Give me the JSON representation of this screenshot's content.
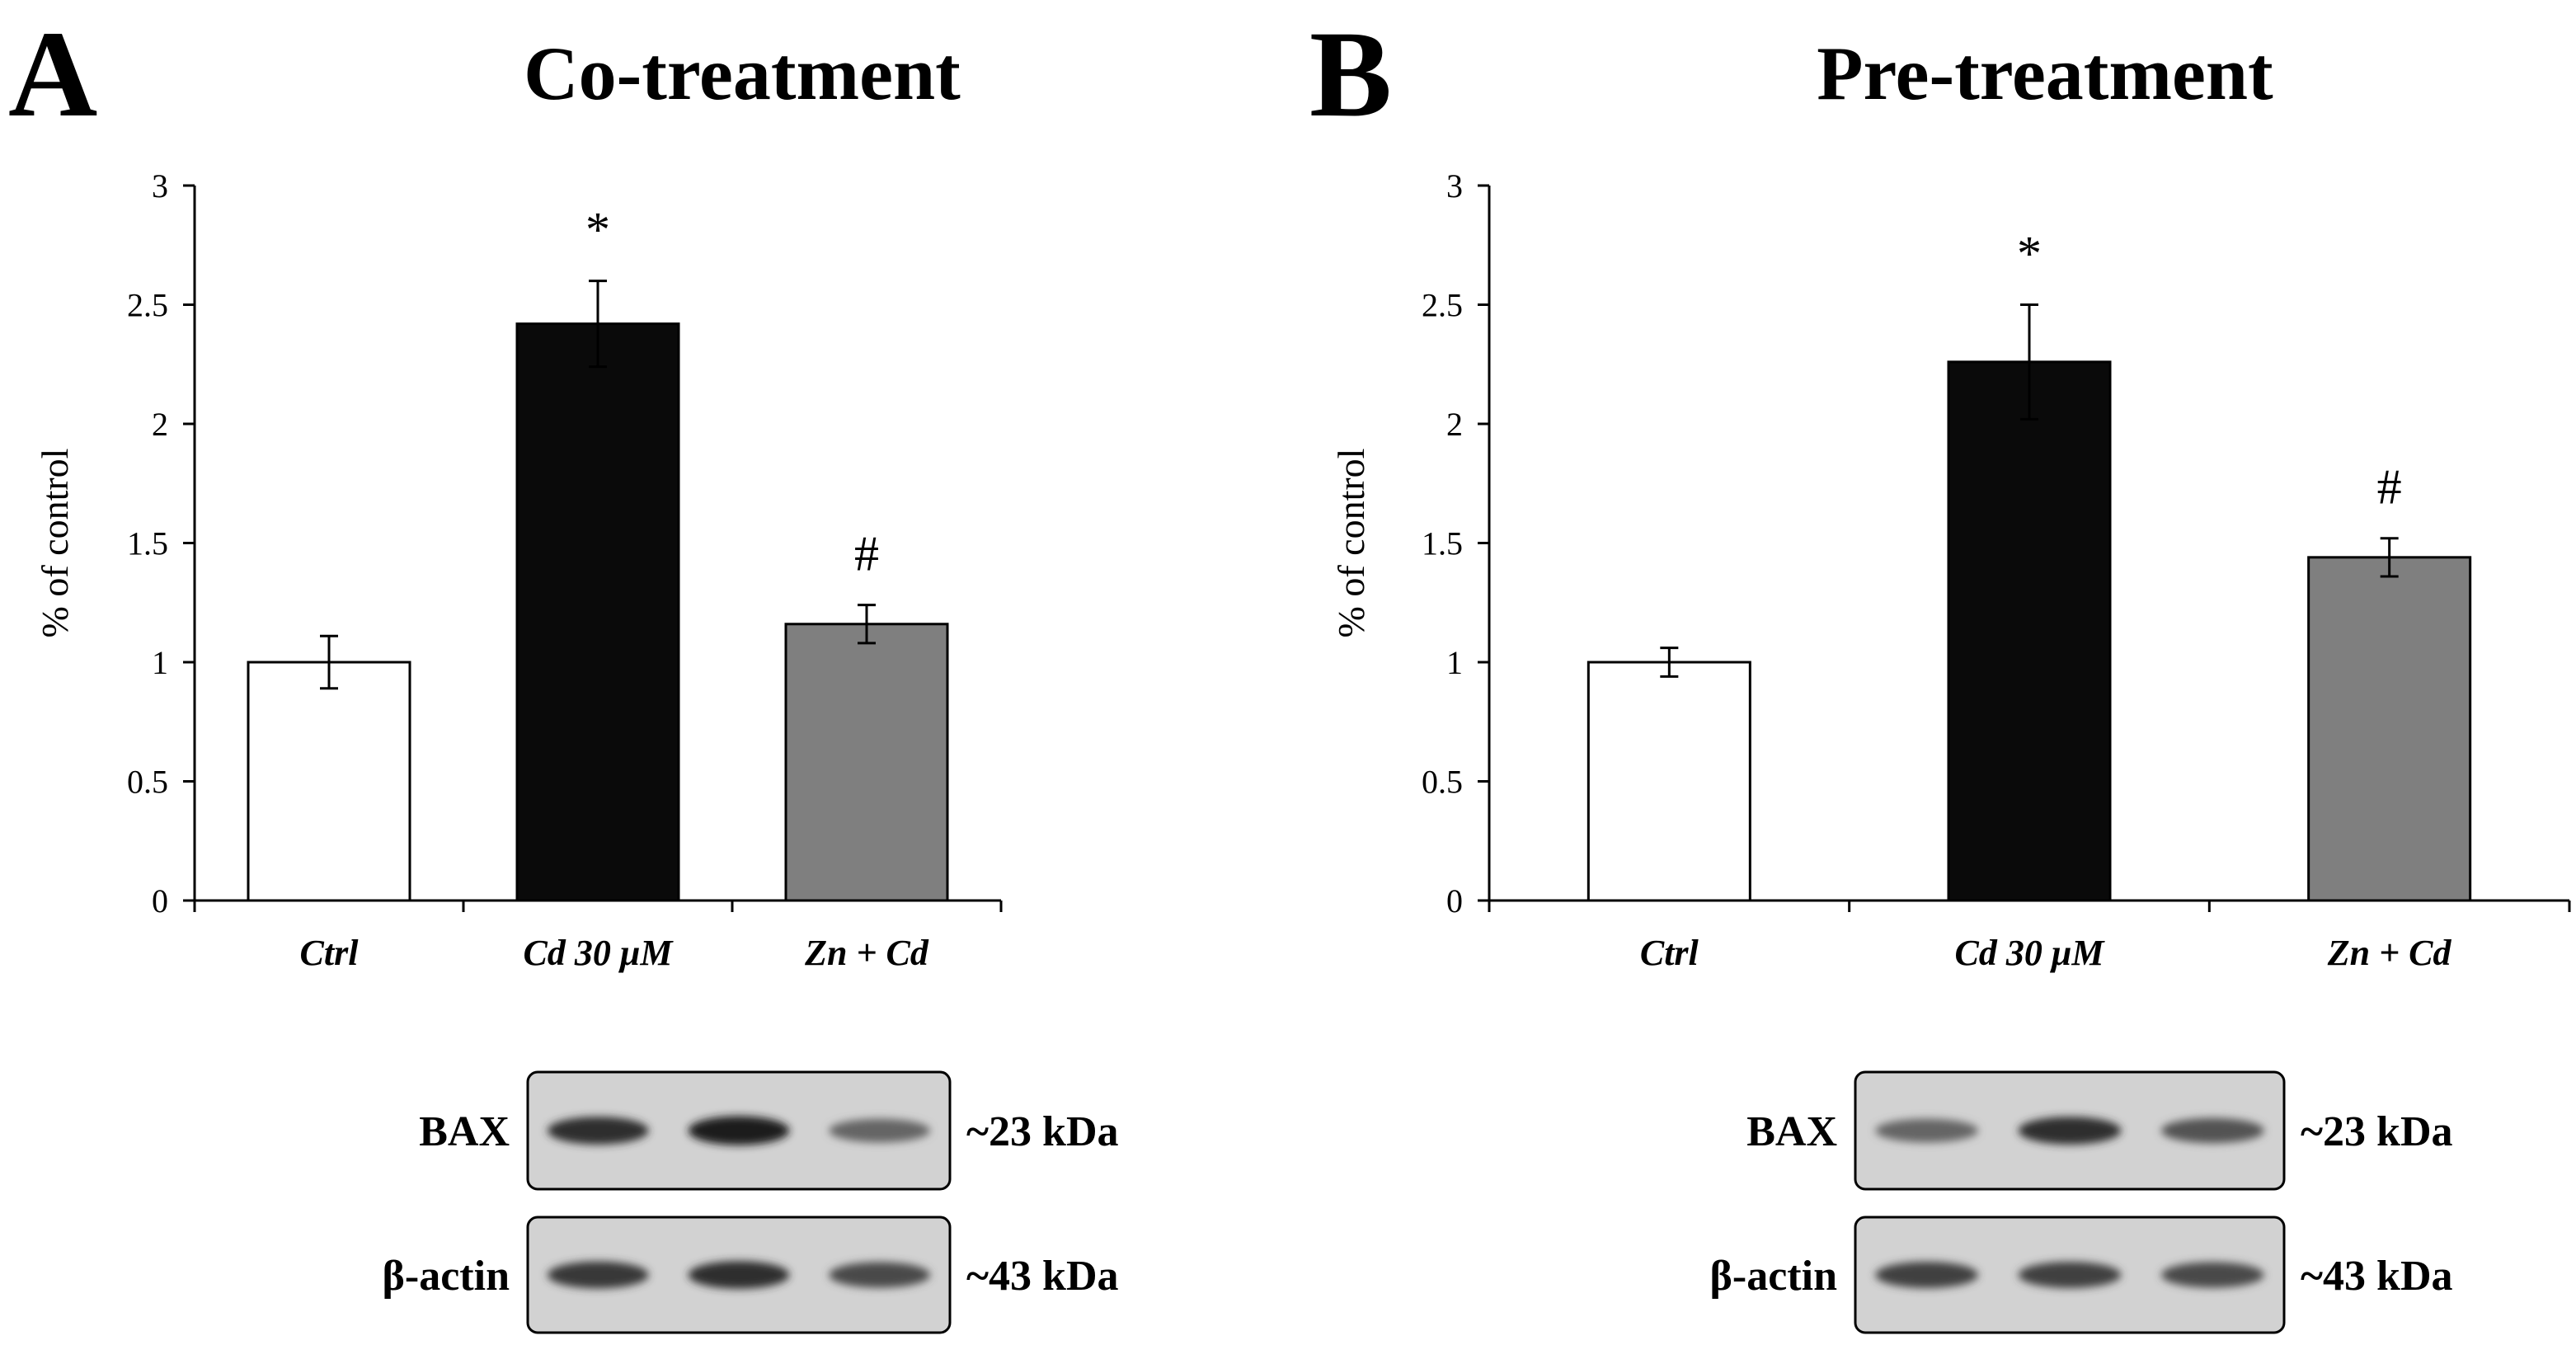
{
  "panels": [
    {
      "letter": "A",
      "title": "Co-treatment",
      "chart_data": {
        "type": "bar",
        "title": "Co-treatment",
        "ylabel": "% of control",
        "xlabel": "",
        "ylim": [
          0,
          3
        ],
        "yticks": [
          0,
          0.5,
          1,
          1.5,
          2,
          2.5,
          3
        ],
        "ytick_labels": [
          "0",
          "0.5",
          "1",
          "1.5",
          "2",
          "2.5",
          "3"
        ],
        "categories": [
          "Ctrl",
          "Cd 30 μM",
          "Zn + Cd"
        ],
        "values": [
          1.0,
          2.42,
          1.16
        ],
        "errors": [
          0.11,
          0.18,
          0.08
        ],
        "bar_colors": [
          "#ffffff",
          "#0a0a0a",
          "#7f7f7f"
        ],
        "annotations": [
          "",
          "*",
          "#"
        ],
        "grid": false
      },
      "blot": {
        "rows": [
          {
            "label": "BAX",
            "kda": "~23 kDa",
            "intensities": [
              0.85,
              0.95,
              0.55
            ]
          },
          {
            "label": "β-actin",
            "kda": "~43 kDa",
            "intensities": [
              0.8,
              0.85,
              0.7
            ]
          }
        ]
      }
    },
    {
      "letter": "B",
      "title": "Pre-treatment",
      "chart_data": {
        "type": "bar",
        "title": "Pre-treatment",
        "ylabel": "% of control",
        "xlabel": "",
        "ylim": [
          0,
          3
        ],
        "yticks": [
          0,
          0.5,
          1,
          1.5,
          2,
          2.5,
          3
        ],
        "ytick_labels": [
          "0",
          "0.5",
          "1",
          "1.5",
          "2",
          "2.5",
          "3"
        ],
        "categories": [
          "Ctrl",
          "Cd 30 μM",
          "Zn + Cd"
        ],
        "values": [
          1.0,
          2.26,
          1.44
        ],
        "errors": [
          0.06,
          0.24,
          0.08
        ],
        "bar_colors": [
          "#ffffff",
          "#0a0a0a",
          "#7f7f7f"
        ],
        "annotations": [
          "",
          "*",
          "#"
        ],
        "grid": false
      },
      "blot": {
        "rows": [
          {
            "label": "BAX",
            "kda": "~23 kDa",
            "intensities": [
              0.55,
              0.85,
              0.65
            ]
          },
          {
            "label": "β-actin",
            "kda": "~43 kDa",
            "intensities": [
              0.75,
              0.75,
              0.7
            ]
          }
        ]
      }
    }
  ]
}
